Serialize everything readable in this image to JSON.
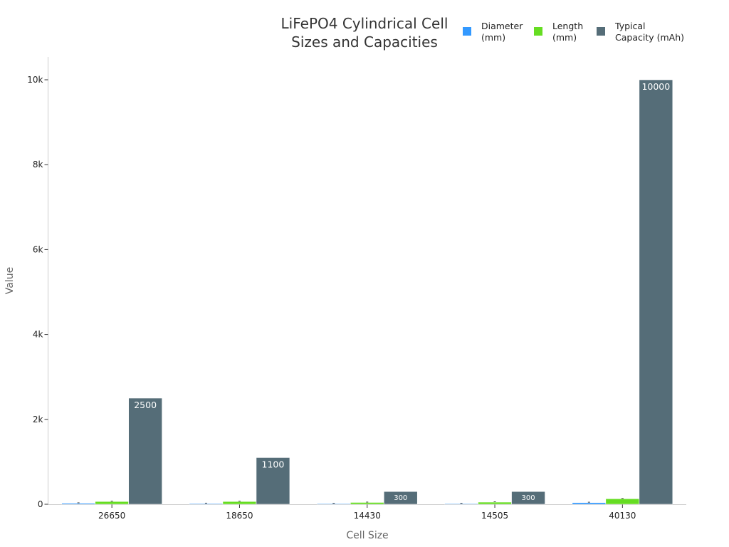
{
  "chart_data": {
    "type": "bar",
    "title": [
      "LiFePO4 Cylindrical Cell",
      "Sizes and Capacities"
    ],
    "xlabel": "Cell Size",
    "ylabel": "Value",
    "categories": [
      "26650",
      "18650",
      "14430",
      "14505",
      "40130"
    ],
    "ylim": [
      0,
      10500
    ],
    "yticks": [
      0,
      2000,
      4000,
      6000,
      8000,
      10000
    ],
    "ytick_labels": [
      "0",
      "2k",
      "4k",
      "6k",
      "8k",
      "10k"
    ],
    "legend_position": "top-right",
    "series": [
      {
        "name": [
          "Diameter",
          "(mm)"
        ],
        "color": "#3399ff",
        "values": [
          26,
          18,
          14,
          14,
          40
        ]
      },
      {
        "name": [
          "Length",
          "(mm)"
        ],
        "color": "#66dd22",
        "values": [
          65,
          65,
          43,
          50,
          130
        ]
      },
      {
        "name": [
          "Typical",
          "Capacity (mAh)"
        ],
        "color": "#556d78",
        "values": [
          2500,
          1100,
          300,
          300,
          10000
        ],
        "data_labels": [
          "2500",
          "1100",
          "300",
          "300",
          "10000"
        ]
      }
    ]
  }
}
